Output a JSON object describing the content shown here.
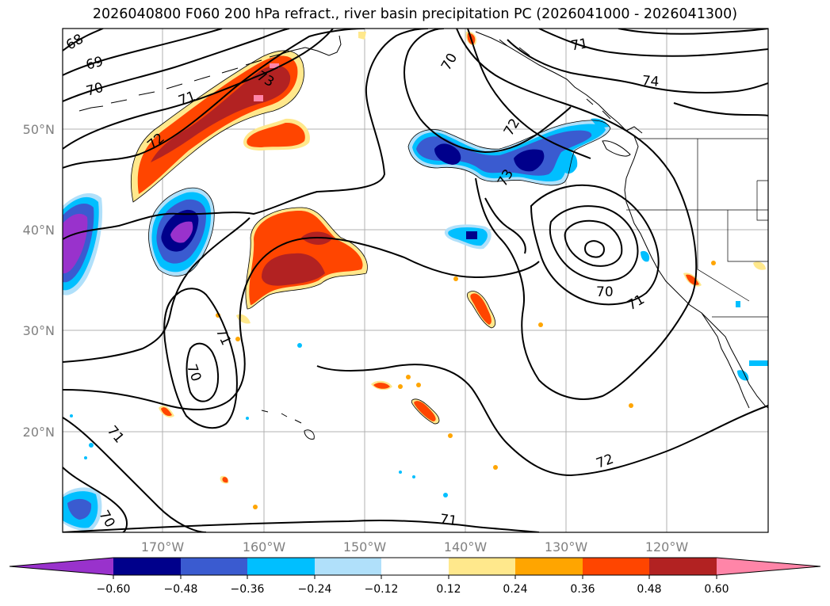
{
  "title": "2026040800 F060 200 hPa refract., river basin precipitation PC (2026041000 - 2026041300)",
  "colors": {
    "neg_extend": "#9932cc",
    "neg_060": "#00008b",
    "neg_048": "#3a5bd0",
    "neg_036": "#00bfff",
    "neg_024": "#b0e0fa",
    "neutral": "#ffffff",
    "pos_012": "#ffe88c",
    "pos_024": "#ffa500",
    "pos_036": "#ff4500",
    "pos_048": "#b22222",
    "pos_extend": "#ff85a8"
  },
  "axes": {
    "lat_labels": [
      "50°N",
      "40°N",
      "30°N",
      "20°N"
    ],
    "lon_labels": [
      "170°W",
      "160°W",
      "150°W",
      "140°W",
      "130°W",
      "120°W"
    ]
  },
  "colorbar": {
    "ticks": [
      "−0.60",
      "−0.48",
      "−0.36",
      "−0.24",
      "−0.12",
      "0.12",
      "0.24",
      "0.36",
      "0.48",
      "0.60"
    ]
  },
  "contour_labels": [
    "68",
    "69",
    "70",
    "71",
    "72",
    "73",
    "70",
    "72",
    "73",
    "71",
    "74",
    "70",
    "71",
    "71",
    "70",
    "71",
    "72",
    "71",
    "70"
  ]
}
